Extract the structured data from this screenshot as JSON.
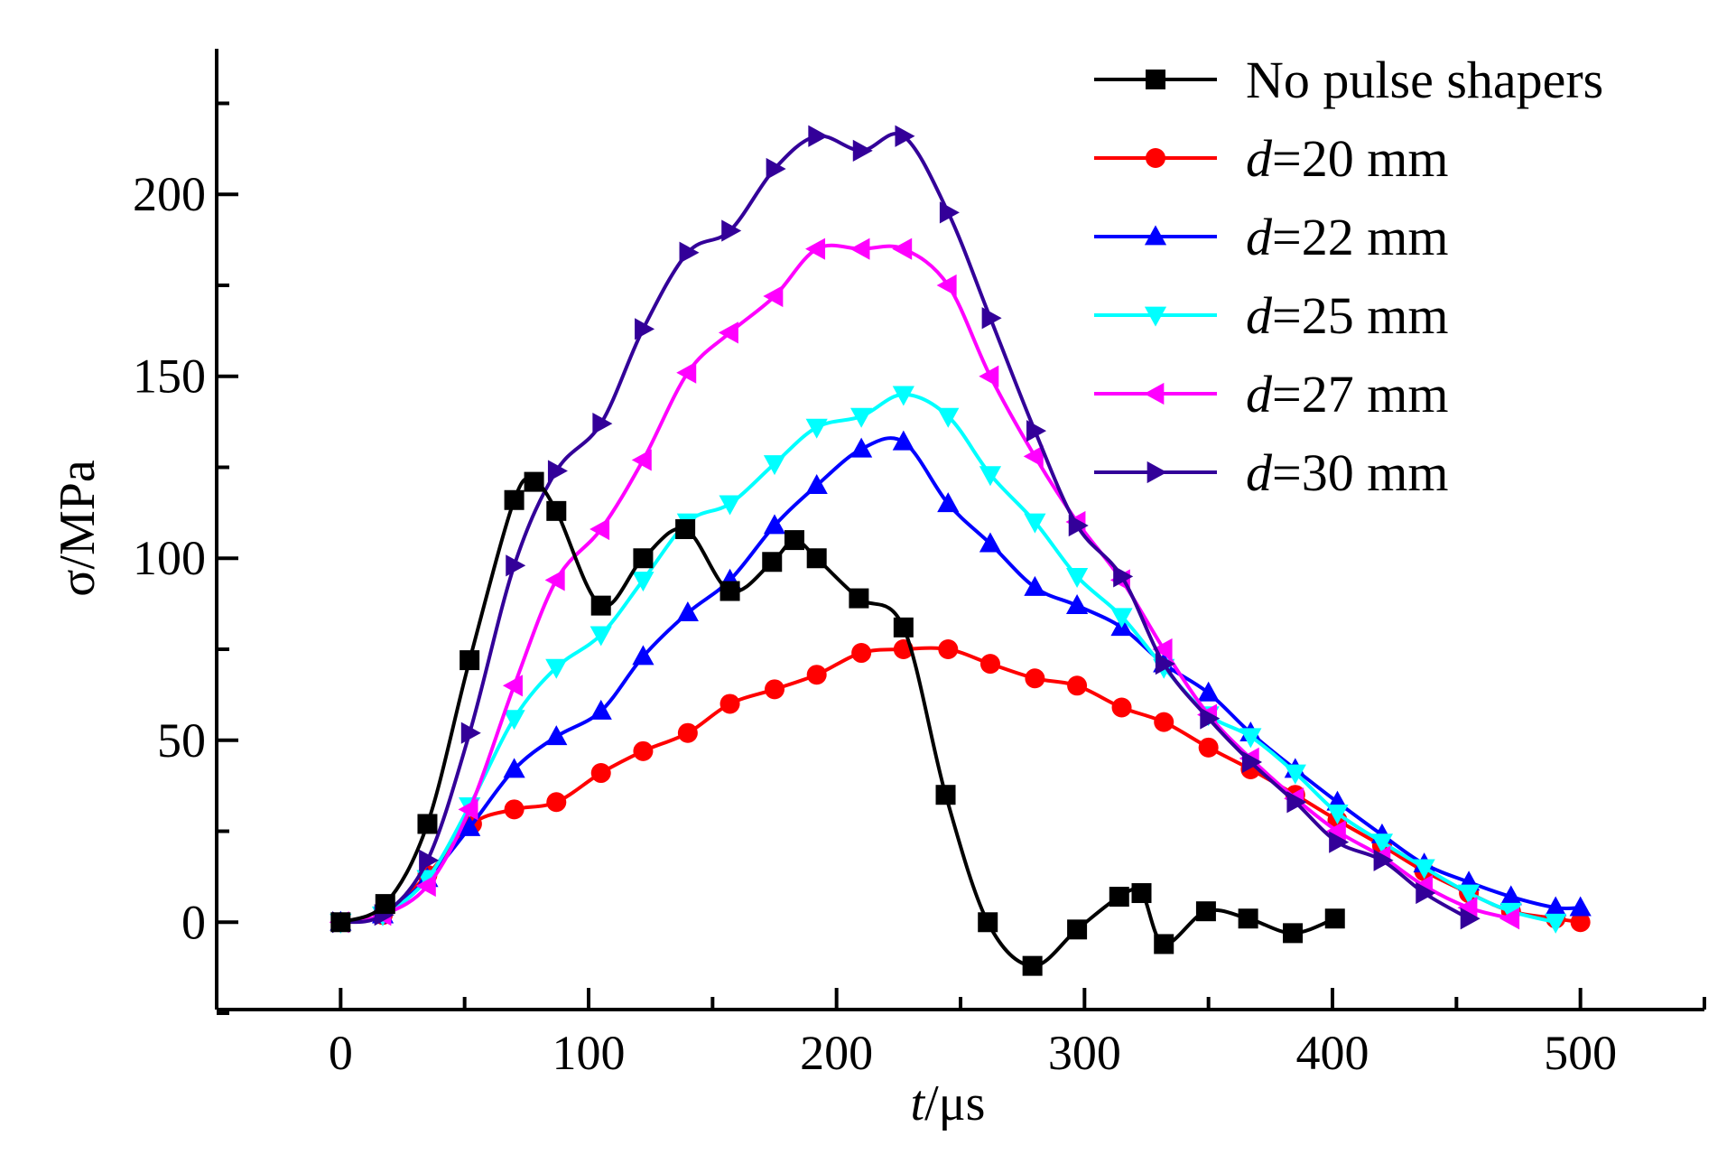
{
  "chart_data": {
    "type": "line",
    "title": "",
    "xlabel_italic": "t",
    "xlabel_rest": "/μs",
    "ylabel": "σ/MPa",
    "xlim": [
      -50,
      550
    ],
    "ylim": [
      -24,
      240
    ],
    "x_ticks": [
      0,
      100,
      200,
      300,
      400,
      500
    ],
    "y_ticks": [
      0,
      50,
      100,
      150,
      200
    ],
    "grid": false,
    "legend_position": "top-right",
    "series": [
      {
        "name": "No pulse shapers",
        "label_prefix": "",
        "label_rest": "No pulse shapers",
        "color": "#000000",
        "marker": "square",
        "points": [
          [
            0,
            0
          ],
          [
            18,
            5
          ],
          [
            35,
            27
          ],
          [
            52,
            72
          ],
          [
            70,
            116
          ],
          [
            78,
            121
          ],
          [
            87,
            113
          ],
          [
            105,
            87
          ],
          [
            122,
            100
          ],
          [
            139,
            108
          ],
          [
            157,
            91
          ],
          [
            174,
            99
          ],
          [
            183,
            105
          ],
          [
            192,
            100
          ],
          [
            209,
            89
          ],
          [
            227,
            81
          ],
          [
            244,
            35
          ],
          [
            261,
            0
          ],
          [
            279,
            -12
          ],
          [
            297,
            -2
          ],
          [
            314,
            7
          ],
          [
            323,
            8
          ],
          [
            332,
            -6
          ],
          [
            349,
            3
          ],
          [
            366,
            1
          ],
          [
            384,
            -3
          ],
          [
            401,
            1
          ]
        ]
      },
      {
        "name": "d=20 mm",
        "label_prefix": "d",
        "label_rest": "=20 mm",
        "color": "#ff0000",
        "marker": "circle",
        "points": [
          [
            0,
            0
          ],
          [
            17,
            2
          ],
          [
            35,
            13
          ],
          [
            53,
            27
          ],
          [
            70,
            31
          ],
          [
            87,
            33
          ],
          [
            105,
            41
          ],
          [
            122,
            47
          ],
          [
            140,
            52
          ],
          [
            157,
            60
          ],
          [
            175,
            64
          ],
          [
            192,
            68
          ],
          [
            210,
            74
          ],
          [
            227,
            75
          ],
          [
            245,
            75
          ],
          [
            262,
            71
          ],
          [
            280,
            67
          ],
          [
            297,
            65
          ],
          [
            315,
            59
          ],
          [
            332,
            55
          ],
          [
            350,
            48
          ],
          [
            367,
            42
          ],
          [
            385,
            35
          ],
          [
            402,
            28
          ],
          [
            420,
            21
          ],
          [
            437,
            14
          ],
          [
            455,
            8
          ],
          [
            472,
            3
          ],
          [
            490,
            1
          ],
          [
            500,
            0
          ]
        ]
      },
      {
        "name": "d=22 mm",
        "label_prefix": "d",
        "label_rest": "=22 mm",
        "color": "#0000ff",
        "marker": "triangle-up",
        "points": [
          [
            0,
            0
          ],
          [
            17,
            2
          ],
          [
            35,
            12
          ],
          [
            52,
            26
          ],
          [
            70,
            42
          ],
          [
            87,
            51
          ],
          [
            105,
            58
          ],
          [
            122,
            73
          ],
          [
            140,
            85
          ],
          [
            157,
            94
          ],
          [
            175,
            109
          ],
          [
            192,
            120
          ],
          [
            210,
            130
          ],
          [
            227,
            132
          ],
          [
            245,
            115
          ],
          [
            262,
            104
          ],
          [
            280,
            92
          ],
          [
            297,
            87
          ],
          [
            315,
            81
          ],
          [
            332,
            71
          ],
          [
            350,
            63
          ],
          [
            367,
            52
          ],
          [
            385,
            42
          ],
          [
            402,
            33
          ],
          [
            420,
            24
          ],
          [
            437,
            16
          ],
          [
            455,
            11
          ],
          [
            472,
            7
          ],
          [
            490,
            4
          ],
          [
            500,
            4
          ]
        ]
      },
      {
        "name": "d=25 mm",
        "label_prefix": "d",
        "label_rest": "=25 mm",
        "color": "#00ffff",
        "marker": "triangle-down",
        "points": [
          [
            0,
            0
          ],
          [
            17,
            2
          ],
          [
            35,
            12
          ],
          [
            52,
            32
          ],
          [
            70,
            56
          ],
          [
            87,
            70
          ],
          [
            105,
            79
          ],
          [
            122,
            94
          ],
          [
            140,
            110
          ],
          [
            157,
            115
          ],
          [
            175,
            126
          ],
          [
            192,
            136
          ],
          [
            210,
            139
          ],
          [
            227,
            145
          ],
          [
            245,
            139
          ],
          [
            262,
            123
          ],
          [
            280,
            110
          ],
          [
            297,
            95
          ],
          [
            315,
            84
          ],
          [
            332,
            70
          ],
          [
            350,
            57
          ],
          [
            367,
            51
          ],
          [
            385,
            41
          ],
          [
            402,
            30
          ],
          [
            420,
            22
          ],
          [
            437,
            15
          ],
          [
            455,
            8
          ],
          [
            472,
            3
          ],
          [
            490,
            0
          ]
        ]
      },
      {
        "name": "d=27 mm",
        "label_prefix": "d",
        "label_rest": "=27 mm",
        "color": "#ff00ff",
        "marker": "triangle-left",
        "points": [
          [
            0,
            0
          ],
          [
            17,
            2
          ],
          [
            35,
            10
          ],
          [
            52,
            31
          ],
          [
            70,
            65
          ],
          [
            87,
            94
          ],
          [
            105,
            108
          ],
          [
            122,
            127
          ],
          [
            140,
            151
          ],
          [
            157,
            162
          ],
          [
            175,
            172
          ],
          [
            192,
            185
          ],
          [
            210,
            185
          ],
          [
            227,
            185
          ],
          [
            245,
            175
          ],
          [
            262,
            150
          ],
          [
            280,
            128
          ],
          [
            297,
            110
          ],
          [
            315,
            94
          ],
          [
            332,
            75
          ],
          [
            350,
            57
          ],
          [
            367,
            45
          ],
          [
            385,
            34
          ],
          [
            402,
            25
          ],
          [
            420,
            18
          ],
          [
            437,
            10
          ],
          [
            455,
            4
          ],
          [
            472,
            1
          ]
        ]
      },
      {
        "name": "d=30 mm",
        "label_prefix": "d",
        "label_rest": "=30 mm",
        "color": "#330099",
        "marker": "triangle-right",
        "points": [
          [
            0,
            0
          ],
          [
            17,
            2
          ],
          [
            35,
            17
          ],
          [
            52,
            52
          ],
          [
            70,
            98
          ],
          [
            87,
            124
          ],
          [
            105,
            137
          ],
          [
            122,
            163
          ],
          [
            140,
            184
          ],
          [
            157,
            190
          ],
          [
            175,
            207
          ],
          [
            192,
            216
          ],
          [
            210,
            212
          ],
          [
            227,
            216
          ],
          [
            245,
            195
          ],
          [
            262,
            166
          ],
          [
            280,
            135
          ],
          [
            297,
            109
          ],
          [
            315,
            95
          ],
          [
            332,
            71
          ],
          [
            350,
            56
          ],
          [
            367,
            44
          ],
          [
            385,
            33
          ],
          [
            402,
            22
          ],
          [
            420,
            17
          ],
          [
            437,
            8
          ],
          [
            455,
            1
          ]
        ]
      }
    ]
  }
}
